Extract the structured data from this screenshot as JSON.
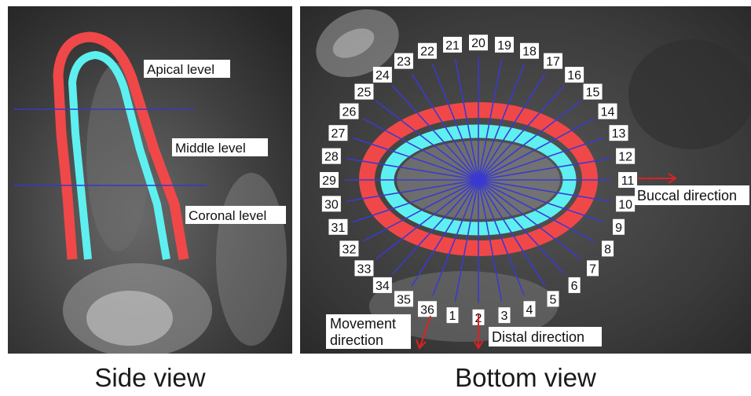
{
  "side_view": {
    "caption": "Side view",
    "labels": {
      "apical": "Apical level",
      "middle": "Middle level",
      "coronal": "Coronal level"
    }
  },
  "bottom_view": {
    "caption": "Bottom view",
    "ray_numbers": [
      "1",
      "2",
      "3",
      "4",
      "5",
      "6",
      "7",
      "8",
      "9",
      "10",
      "11",
      "12",
      "13",
      "14",
      "15",
      "16",
      "17",
      "18",
      "19",
      "20",
      "21",
      "22",
      "23",
      "24",
      "25",
      "26",
      "27",
      "28",
      "29",
      "30",
      "31",
      "32",
      "33",
      "34",
      "35",
      "36"
    ],
    "buccal_label": "Buccal direction",
    "distal_label": "Distal direction",
    "movement_label_line1": "Movement",
    "movement_label_line2": "direction"
  },
  "colors": {
    "outer_contour": "#f04848",
    "inner_contour": "#5ef0f0",
    "level_lines": "#3838c8",
    "rays": "#3a3ad0",
    "arrows": "#e02020",
    "scan_dark": "#3a3a3a",
    "label_bg": "#ffffff"
  }
}
